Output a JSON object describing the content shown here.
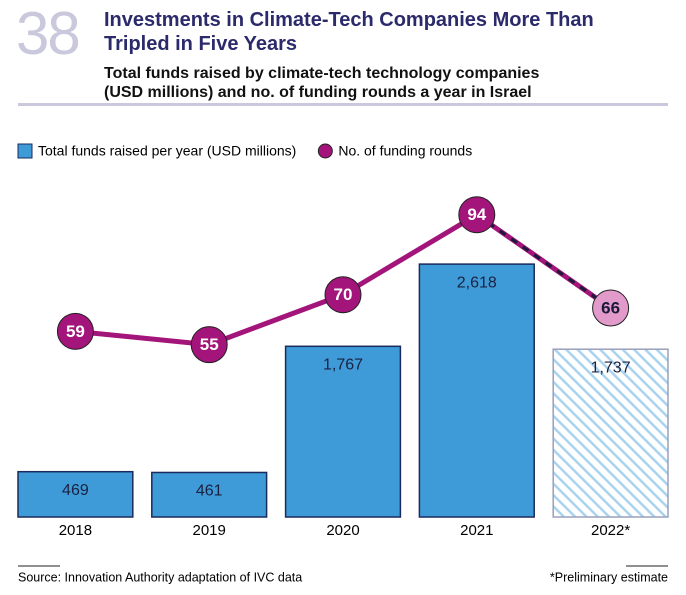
{
  "figure_number": "38",
  "chart_data": {
    "type": "bar",
    "title": "Investments in Climate-Tech Companies More Than Tripled in Five Years",
    "subtitle": "Total funds raised by climate-tech technology companies (USD millions) and no. of funding rounds a year in Israel",
    "categories": [
      "2018",
      "2019",
      "2020",
      "2021",
      "2022*"
    ],
    "series": [
      {
        "name": "Total funds raised per year (USD millions)",
        "color": "#3f9bd8",
        "values": [
          469,
          461,
          1767,
          2618,
          1737
        ],
        "value_labels": [
          "469",
          "461",
          "1,767",
          "2,618",
          "1,737"
        ]
      },
      {
        "name": "No. of funding rounds",
        "type": "line",
        "color": "#a3157a",
        "values": [
          59,
          55,
          70,
          94,
          66
        ]
      }
    ]
  },
  "source": "Source: Innovation Authority adaptation of IVC data",
  "note": "*Preliminary estimate"
}
